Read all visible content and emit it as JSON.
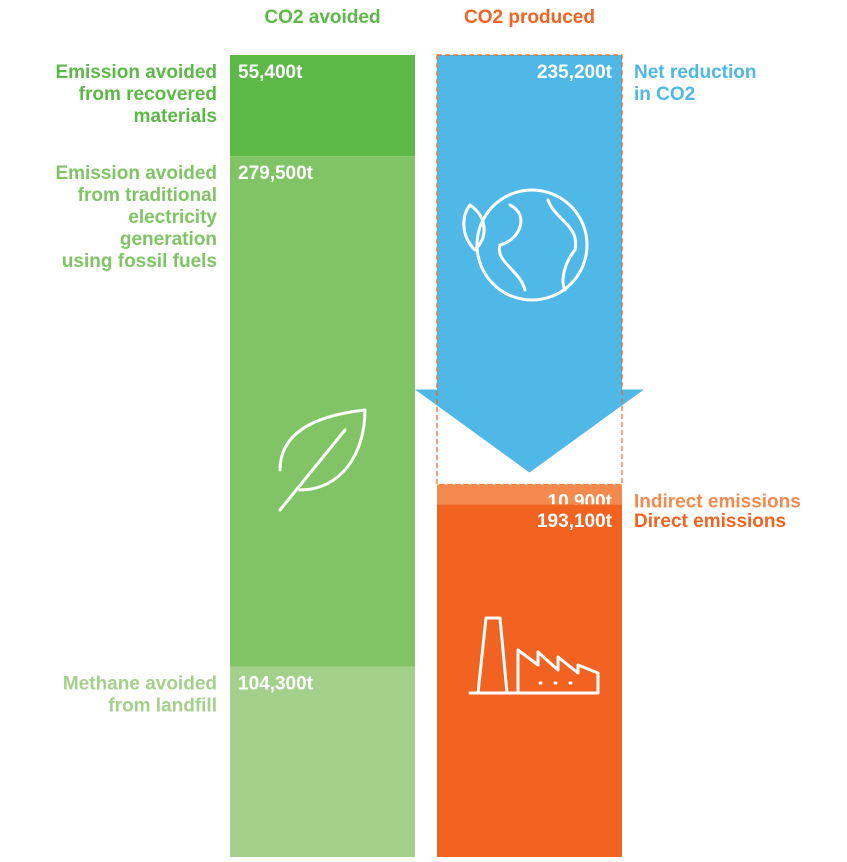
{
  "chart_data": {
    "type": "stacked-column",
    "columns": [
      {
        "name": "CO2 avoided",
        "color": "#5cb947",
        "segments": [
          {
            "label": [
              "Emission avoided",
              "from recovered",
              "materials"
            ],
            "value": 55400,
            "value_label": "55,400t",
            "color": "#5cb947"
          },
          {
            "label": [
              "Emission avoided",
              "from traditional",
              "electricity",
              "generation",
              "using fossil fuels"
            ],
            "value": 279500,
            "value_label": "279,500t",
            "color": "#80c465"
          },
          {
            "label": [
              "Methane avoided",
              "from landfill"
            ],
            "value": 104300,
            "value_label": "104,300t",
            "color": "#a3d18b"
          }
        ]
      },
      {
        "name": "CO2 produced",
        "color": "#f26322",
        "segments": [
          {
            "label": [
              "Net reduction",
              "in CO2"
            ],
            "value": 235200,
            "value_label": "235,200t",
            "color": "#4fb8e7"
          },
          {
            "label": [
              "Indirect emissions"
            ],
            "value": 10900,
            "value_label": "10,900t",
            "color": "#f58a4e"
          },
          {
            "label": [
              "Direct emissions"
            ],
            "value": 193100,
            "value_label": "193,100t",
            "color": "#f26322"
          }
        ]
      }
    ]
  }
}
